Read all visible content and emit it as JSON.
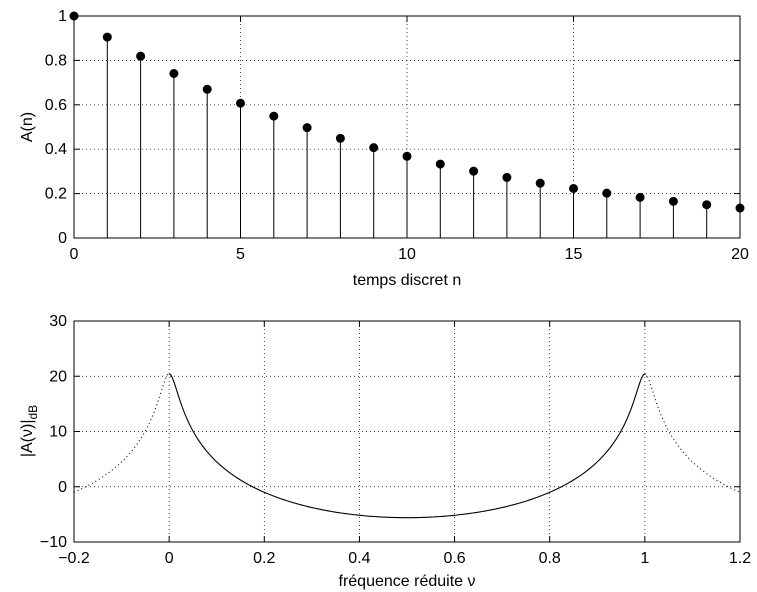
{
  "chart_data": [
    {
      "type": "stem",
      "xlabel": "temps discret n",
      "ylabel": "A(n)",
      "xlim": [
        0,
        20
      ],
      "ylim": [
        0,
        1
      ],
      "xticks": [
        0,
        5,
        10,
        15,
        20
      ],
      "xtick_labels": [
        "0",
        "5",
        "10",
        "15",
        "20"
      ],
      "yticks": [
        0,
        0.2,
        0.4,
        0.6,
        0.8,
        1
      ],
      "ytick_labels": [
        "0",
        "0.2",
        "0.4",
        "0.6",
        "0.8",
        "1"
      ],
      "grid": true,
      "x": [
        0,
        1,
        2,
        3,
        4,
        5,
        6,
        7,
        8,
        9,
        10,
        11,
        12,
        13,
        14,
        15,
        16,
        17,
        18,
        19,
        20
      ],
      "y": [
        1.0,
        0.905,
        0.819,
        0.741,
        0.67,
        0.607,
        0.549,
        0.497,
        0.449,
        0.407,
        0.368,
        0.333,
        0.301,
        0.273,
        0.247,
        0.223,
        0.202,
        0.183,
        0.165,
        0.15,
        0.135
      ],
      "marker_color": "#000000"
    },
    {
      "type": "line",
      "xlabel": "fréquence réduite ν",
      "ylabel": "|A(ν)|",
      "ylabel_subscript": "dB",
      "xlim": [
        -0.2,
        1.2
      ],
      "ylim": [
        -10,
        30
      ],
      "xticks": [
        -0.2,
        0,
        0.2,
        0.4,
        0.6,
        0.8,
        1,
        1.2
      ],
      "xtick_labels": [
        "−0.2",
        "0",
        "0.2",
        "0.4",
        "0.6",
        "0.8",
        "1",
        "1.2"
      ],
      "yticks": [
        -10,
        0,
        10,
        20,
        30
      ],
      "ytick_labels": [
        "−10",
        "0",
        "10",
        "20",
        "30"
      ],
      "grid": true,
      "function": "20*log10(1/|1 - 0.905*exp(-2*pi*i*nu)|)",
      "series": [
        {
          "style": "solid",
          "x_range": [
            0,
            1
          ],
          "line_color": "#000000"
        },
        {
          "style": "dotted",
          "x_range": [
            -0.2,
            0
          ],
          "line_color": "#000000"
        },
        {
          "style": "dotted",
          "x_range": [
            1,
            1.2
          ],
          "line_color": "#000000"
        }
      ]
    }
  ]
}
